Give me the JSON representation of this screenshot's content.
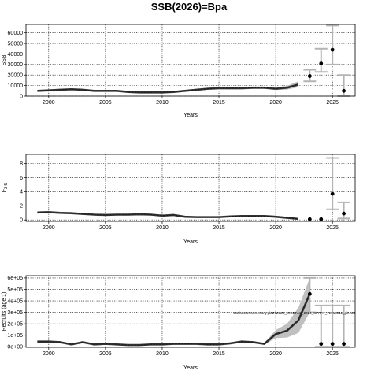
{
  "figure": {
    "title": "SSB(2026)=Bpa",
    "note": "stockassessment.org plaZ7Z1Z8_WGBFAS_2024_SPRAT_v1.r18011_git:e38"
  },
  "colors": {
    "band": "#c0c0c0",
    "line": "#333333",
    "projection": "#b4b4b4",
    "point": "#000000",
    "grid": "#000000"
  },
  "chart_data": [
    {
      "type": "line",
      "title": "",
      "xlabel": "Years",
      "ylabel": "SSB",
      "xlim": [
        1998,
        2027
      ],
      "ylim": [
        0,
        68000
      ],
      "grid": true,
      "xticks": [
        2000,
        2005,
        2010,
        2015,
        2020,
        2025
      ],
      "yticks": [
        0,
        10000,
        20000,
        30000,
        40000,
        50000,
        60000
      ],
      "ytick_labels": [
        "0",
        "10000",
        "20000",
        "30000",
        "40000",
        "50000",
        "60000"
      ],
      "x": [
        1999,
        2000,
        2001,
        2002,
        2003,
        2004,
        2005,
        2006,
        2007,
        2008,
        2009,
        2010,
        2011,
        2012,
        2013,
        2014,
        2015,
        2016,
        2017,
        2018,
        2019,
        2020,
        2021,
        2022
      ],
      "series": [
        {
          "values": [
            5000,
            5500,
            6000,
            6500,
            6000,
            5000,
            5000,
            5000,
            4000,
            3500,
            3500,
            3500,
            4000,
            5000,
            6000,
            7000,
            7500,
            7500,
            7500,
            8000,
            8000,
            7000,
            8000,
            11000
          ],
          "lower": [
            4200,
            4700,
            5200,
            5700,
            5200,
            4200,
            4200,
            4200,
            3300,
            2900,
            2900,
            2900,
            3300,
            4200,
            5100,
            6000,
            6400,
            6400,
            6400,
            6800,
            6800,
            5800,
            6300,
            8500
          ],
          "upper": [
            5800,
            6300,
            6800,
            7300,
            6800,
            5800,
            5800,
            5800,
            4700,
            4100,
            4100,
            4100,
            4700,
            5800,
            6900,
            8000,
            8600,
            8600,
            8600,
            9200,
            9200,
            8200,
            9800,
            14000
          ]
        }
      ],
      "projection": {
        "x": [
          2023,
          2024,
          2025,
          2026
        ],
        "values": [
          19000,
          31000,
          44000,
          5000
        ],
        "lower": [
          14000,
          23000,
          30000,
          0
        ],
        "upper": [
          25000,
          45000,
          67000,
          20000
        ]
      }
    },
    {
      "type": "line",
      "title": "",
      "xlabel": "Years",
      "ylabel": "F3-5",
      "ylabel_main": "F",
      "ylabel_sub": "3-5",
      "xlim": [
        1998,
        2027
      ],
      "ylim": [
        -0.2,
        9.3
      ],
      "grid": true,
      "xticks": [
        2000,
        2005,
        2010,
        2015,
        2020,
        2025
      ],
      "yticks": [
        0,
        2,
        4,
        6,
        8
      ],
      "ytick_labels": [
        "0",
        "2",
        "4",
        "6",
        "8"
      ],
      "x": [
        1999,
        2000,
        2001,
        2002,
        2003,
        2004,
        2005,
        2006,
        2007,
        2008,
        2009,
        2010,
        2011,
        2012,
        2013,
        2014,
        2015,
        2016,
        2017,
        2018,
        2019,
        2020,
        2021,
        2022
      ],
      "series": [
        {
          "values": [
            1.05,
            1.1,
            1.0,
            0.95,
            0.85,
            0.75,
            0.7,
            0.75,
            0.75,
            0.8,
            0.75,
            0.6,
            0.7,
            0.45,
            0.4,
            0.4,
            0.4,
            0.5,
            0.55,
            0.55,
            0.55,
            0.45,
            0.3,
            0.15
          ],
          "lower": [
            0.9,
            0.95,
            0.85,
            0.8,
            0.72,
            0.63,
            0.58,
            0.63,
            0.63,
            0.68,
            0.63,
            0.5,
            0.58,
            0.37,
            0.32,
            0.32,
            0.32,
            0.42,
            0.47,
            0.47,
            0.46,
            0.36,
            0.22,
            0.08
          ],
          "upper": [
            1.2,
            1.25,
            1.15,
            1.1,
            0.98,
            0.87,
            0.82,
            0.87,
            0.87,
            0.92,
            0.87,
            0.7,
            0.82,
            0.53,
            0.48,
            0.48,
            0.48,
            0.58,
            0.63,
            0.63,
            0.64,
            0.54,
            0.38,
            0.22
          ]
        }
      ],
      "projection": {
        "x": [
          2023,
          2024,
          2025,
          2026
        ],
        "values": [
          0.1,
          0.1,
          3.7,
          0.9
        ],
        "lower": [
          0.1,
          0.1,
          1.5,
          0.2
        ],
        "upper": [
          0.1,
          0.1,
          8.8,
          2.5
        ]
      }
    },
    {
      "type": "line",
      "title": "",
      "xlabel": "Years",
      "ylabel": "Recruits (age 1)",
      "xlim": [
        1998,
        2027
      ],
      "ylim": [
        -5000,
        620000
      ],
      "grid": true,
      "xticks": [
        2000,
        2005,
        2010,
        2015,
        2020,
        2025
      ],
      "yticks": [
        0,
        100000,
        200000,
        300000,
        400000,
        500000,
        600000
      ],
      "ytick_labels": [
        "0e+00",
        "1e+05",
        "2e+05",
        "3e+05",
        "4e+05",
        "5e+05",
        "6e+05"
      ],
      "x": [
        1999,
        2000,
        2001,
        2002,
        2003,
        2004,
        2005,
        2006,
        2007,
        2008,
        2009,
        2010,
        2011,
        2012,
        2013,
        2014,
        2015,
        2016,
        2017,
        2018,
        2019,
        2020,
        2021,
        2022,
        2023
      ],
      "series": [
        {
          "values": [
            45000,
            45000,
            40000,
            20000,
            40000,
            20000,
            25000,
            20000,
            15000,
            15000,
            20000,
            20000,
            25000,
            25000,
            25000,
            20000,
            20000,
            30000,
            45000,
            40000,
            25000,
            110000,
            140000,
            230000,
            460000
          ],
          "lower": [
            38000,
            38000,
            33000,
            15000,
            33000,
            15000,
            19000,
            15000,
            11000,
            11000,
            15000,
            15000,
            19000,
            19000,
            19000,
            15000,
            15000,
            23000,
            36000,
            32000,
            18000,
            75000,
            80000,
            120000,
            300000
          ],
          "upper": [
            52000,
            52000,
            47000,
            25000,
            47000,
            25000,
            31000,
            25000,
            19000,
            19000,
            25000,
            25000,
            31000,
            31000,
            31000,
            25000,
            25000,
            37000,
            54000,
            48000,
            32000,
            145000,
            200000,
            340000,
            600000
          ]
        }
      ],
      "projection": {
        "x": [
          2023,
          2024,
          2025,
          2026
        ],
        "values": [
          460000,
          25000,
          25000,
          25000
        ],
        "lower": [
          300000,
          0,
          0,
          0
        ],
        "upper": [
          600000,
          360000,
          360000,
          360000
        ]
      }
    }
  ]
}
